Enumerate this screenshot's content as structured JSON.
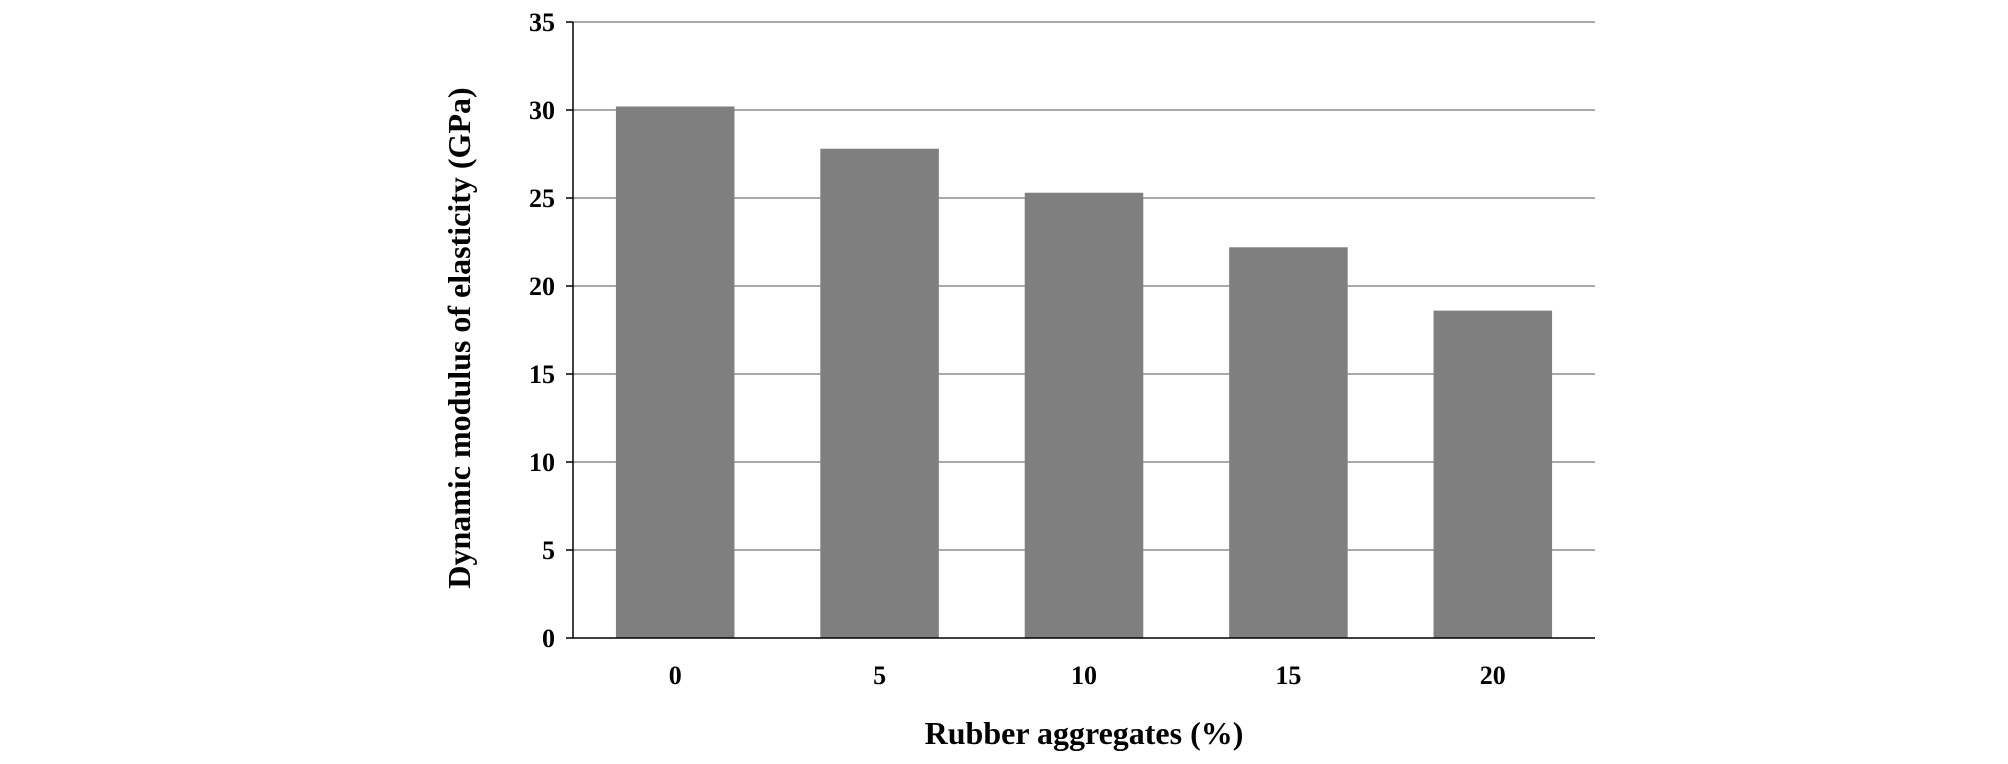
{
  "chart_data": {
    "type": "bar",
    "categories": [
      "0",
      "5",
      "10",
      "15",
      "20"
    ],
    "values": [
      30.2,
      27.8,
      25.3,
      22.2,
      18.6
    ],
    "title": "",
    "xlabel": "Rubber aggregates (%)",
    "ylabel": "Dynamic modulus of elasticity (GPa)",
    "ylim": [
      0,
      35
    ],
    "yticks": [
      "0",
      "5",
      "10",
      "15",
      "20",
      "25",
      "30",
      "35"
    ],
    "grid": "horizontal",
    "legend": "none",
    "colors": {
      "bar": "#7f7f7f",
      "grid": "#8c8c8c",
      "axis": "#000000"
    }
  }
}
